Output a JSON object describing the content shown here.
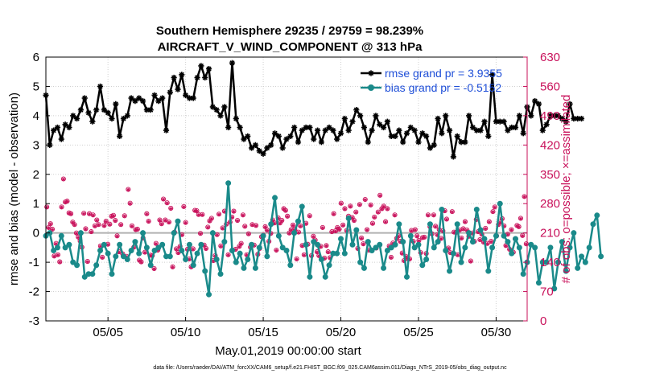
{
  "chart_data": {
    "type": "line",
    "title": "Southern Hemisphere 29235 / 29759 = 98.239%",
    "subtitle": "AIRCRAFT_V_WIND_COMPONENT @ 313 hPa",
    "xlabel": "May.01,2019 00:00:00 start",
    "ylabel": "rmse and bias (model - observation)",
    "y2label": "# of obs: o=possible; ×=assimilated",
    "footnote": "data file: /Users/raeder/DAI/ATM_forcXX/CAM6_setup/f.e21.FHIST_BGC.f09_025.CAM6assim.011/Diags_NTrS_2019-05/obs_diag_output.nc",
    "xlim": [
      1.0,
      32.0
    ],
    "ylim": [
      -3,
      6
    ],
    "y2lim": [
      0,
      630
    ],
    "xticks": [
      5,
      10,
      15,
      20,
      25,
      30
    ],
    "xtick_labels": [
      "05/05",
      "05/10",
      "05/15",
      "05/20",
      "05/25",
      "05/30"
    ],
    "yticks": [
      -3,
      -2,
      -1,
      0,
      1,
      2,
      3,
      4,
      5,
      6
    ],
    "y2ticks": [
      0,
      70,
      140,
      210,
      280,
      350,
      420,
      490,
      560,
      630
    ],
    "grid": "dotted",
    "legend_position": "top-right",
    "x_step_days": 0.25,
    "series": [
      {
        "name": "rmse grand pr = 3.9355",
        "axis": "left",
        "marker": "asterisk",
        "color": "#000000",
        "values": [
          4.7,
          3.0,
          3.5,
          3.6,
          3.2,
          3.7,
          3.6,
          4.0,
          3.9,
          4.2,
          4.6,
          4.1,
          3.8,
          4.2,
          5.0,
          4.2,
          4.1,
          3.9,
          4.4,
          3.3,
          3.9,
          4.0,
          4.6,
          4.5,
          4.6,
          4.5,
          4.2,
          4.2,
          4.7,
          4.5,
          4.6,
          3.5,
          4.8,
          5.3,
          4.9,
          5.4,
          4.7,
          4.6,
          4.6,
          5.3,
          5.7,
          5.3,
          5.6,
          4.3,
          4.2,
          4.0,
          4.3,
          3.6,
          5.8,
          3.9,
          3.6,
          3.2,
          3.3,
          2.9,
          3.0,
          2.8,
          2.7,
          2.9,
          3.0,
          3.4,
          3.3,
          2.9,
          3.2,
          3.3,
          3.6,
          3.1,
          3.5,
          3.6,
          3.6,
          3.2,
          3.5,
          3.1,
          3.5,
          3.6,
          3.5,
          3.2,
          3.4,
          3.9,
          3.5,
          3.8,
          4.2,
          4.0,
          3.6,
          3.1,
          3.5,
          4.0,
          3.7,
          3.6,
          3.8,
          3.3,
          3.3,
          3.5,
          3.1,
          3.4,
          3.6,
          3.5,
          3.1,
          3.4,
          3.3,
          2.9,
          3.0,
          3.9,
          3.4,
          4.0,
          3.5,
          2.6,
          3.3,
          3.1,
          3.1,
          4.0,
          3.6,
          3.5,
          3.5,
          3.8,
          3.3,
          5.4,
          3.8,
          3.8,
          3.8,
          3.5,
          3.6,
          3.6,
          4.0,
          3.4,
          4.3,
          4.0,
          4.5,
          4.4,
          3.5,
          3.7,
          4.0,
          4.0,
          4.0,
          3.9,
          3.8,
          4.4,
          3.9,
          3.9,
          3.9
        ]
      },
      {
        "name": "bias grand pr = -0.5152",
        "axis": "left",
        "marker": "circle",
        "color": "#1a8a8a",
        "values": [
          -0.1,
          0.0,
          -0.6,
          -0.5,
          -0.1,
          -0.5,
          -0.4,
          -1.0,
          -1.1,
          0.0,
          -1.5,
          -1.4,
          -1.4,
          -1.1,
          -0.6,
          -0.4,
          -0.7,
          -1.4,
          -0.8,
          -0.4,
          -0.8,
          -0.9,
          -0.6,
          -0.3,
          -0.7,
          0.0,
          -0.5,
          -1.1,
          -0.6,
          -0.5,
          -0.4,
          -0.8,
          -0.8,
          0.0,
          0.4,
          -0.6,
          -0.9,
          -0.4,
          -1.1,
          -0.7,
          -0.4,
          -1.3,
          -2.1,
          0.0,
          -0.9,
          -1.4,
          -0.3,
          1.7,
          -0.6,
          -1.0,
          -0.7,
          -1.2,
          -0.9,
          -0.4,
          -1.2,
          -0.5,
          -0.1,
          -0.8,
          0.3,
          1.2,
          -0.1,
          -0.5,
          -0.6,
          -1.1,
          0.0,
          0.4,
          0.9,
          -0.4,
          -1.5,
          -0.3,
          -0.4,
          -0.9,
          -1.5,
          -1.1,
          -0.7,
          -0.7,
          -0.2,
          -0.7,
          0.5,
          -0.4,
          0.1,
          -1.0,
          -1.2,
          -0.3,
          -0.6,
          -0.5,
          -0.4,
          -1.2,
          -0.6,
          -0.5,
          -0.4,
          0.3,
          -0.3,
          -1.5,
          -0.1,
          -0.5,
          -0.4,
          -1.1,
          -0.9,
          0.3,
          -0.5,
          -0.3,
          0.8,
          -0.6,
          -1.3,
          -0.7,
          0.3,
          -1.0,
          -0.5,
          0.0,
          -0.3,
          0.8,
          0.1,
          -0.2,
          -1.3,
          -0.5,
          -0.1,
          1.0,
          -0.1,
          -0.3,
          -0.7,
          -0.2,
          -0.5,
          -1.4,
          -1.0,
          -0.4,
          -0.5,
          -1.7,
          -1.0,
          -1.0,
          -0.5,
          -1.9,
          -1.0,
          -0.3,
          -1.3,
          -0.5,
          0.0,
          -1.2,
          -0.8,
          -1.0,
          -0.5,
          0.3,
          0.6,
          -0.8
        ]
      },
      {
        "name": "obs possible",
        "axis": "right",
        "marker": "open-circle",
        "color": "#c8105a",
        "values": [
          272,
          223,
          232,
          219,
          155,
          185,
          158,
          141,
          272,
          339,
          284,
          286,
          258,
          256,
          236,
          230,
          210,
          200,
          191,
          176,
          257,
          220,
          142,
          256,
          213,
          253,
          227,
          241,
          230,
          179,
          152,
          228,
          238,
          183,
          231,
          250,
          252,
          240,
          203,
          165,
          230,
          160,
          251,
          154,
          314,
          281,
          227,
          176,
          218,
          219,
          145,
          141,
          198,
          164,
          256,
          238,
          157,
          156,
          125,
          185,
          169,
          241,
          232,
          291,
          241,
          282,
          236,
          269,
          129,
          212,
          172,
          163,
          178,
          206,
          273,
          235,
          171,
          148,
          129,
          172,
          264,
          263,
          254,
          209,
          254,
          181,
          173,
          224,
          239,
          245,
          144,
          156,
          206,
          255,
          179,
          222,
          262,
          231,
          158,
          236,
          248,
          262,
          171,
          240,
          178,
          185,
          253,
          226,
          158,
          208,
          176,
          230,
          181,
          228,
          159,
          173,
          201,
          205,
          225,
          217,
          190,
          209,
          241,
          234,
          169,
          246,
          234,
          240,
          268,
          264,
          250,
          210,
          218,
          229,
          219,
          148,
          212,
          227,
          180,
          158,
          233,
          183,
          251,
          156,
          202,
          193,
          165,
          156,
          178,
          223,
          150,
          180,
          165,
          151,
          213,
          256,
          215,
          223,
          219,
          281,
          229,
          268,
          216,
          250,
          274,
          247,
          240,
          260,
          173,
          278,
          198,
          184,
          290,
          218,
          169,
          277,
          233,
          248,
          174,
          260,
          300,
          268,
          274,
          237,
          268,
          179,
          152,
          186,
          253,
          197,
          203,
          190,
          162,
          144,
          154,
          149,
          148,
          216,
          190,
          218,
          203,
          192,
          163,
          199,
          200,
          161,
          253,
          225,
          208,
          253,
          226,
          206,
          218,
          197,
          215,
          263,
          243,
          174,
          163,
          261,
          212,
          211,
          158,
          217,
          198,
          220,
          237,
          217,
          202,
          143,
          210,
          190,
          242,
          213,
          194,
          207,
          188,
          221,
          185,
          237,
          190,
          261,
          272,
          203,
          230,
          236,
          244,
          227,
          180,
          207,
          171,
          218,
          164,
          196,
          228,
          225,
          245,
          204,
          297,
          184
        ]
      },
      {
        "name": "obs assimilated",
        "axis": "right",
        "marker": "asterisk",
        "color": "#c8105a",
        "values": [
          271,
          222,
          231,
          218,
          154,
          184,
          157,
          140,
          271,
          338,
          283,
          285,
          257,
          255,
          235,
          229,
          209,
          199,
          190,
          175,
          256,
          219,
          141,
          255,
          212,
          252,
          226,
          240,
          229,
          178,
          151,
          227,
          237,
          182,
          230,
          249,
          251,
          239,
          202,
          164,
          229,
          159,
          250,
          153,
          313,
          280,
          226,
          175,
          217,
          218,
          144,
          140,
          197,
          163,
          255,
          237,
          156,
          155,
          124,
          184,
          168,
          240,
          231,
          290,
          240,
          281,
          235,
          268,
          128,
          211,
          171,
          162,
          177,
          205,
          272,
          234,
          170,
          147,
          128,
          171,
          263,
          262,
          253,
          208,
          253,
          180,
          172,
          223,
          238,
          244,
          143,
          155,
          205,
          254,
          178,
          221,
          261,
          230,
          157,
          235,
          247,
          261,
          170,
          239,
          177,
          184,
          252,
          225,
          157,
          207,
          175,
          229,
          180,
          227,
          158,
          172,
          200,
          204,
          224,
          216,
          189,
          208,
          240,
          233,
          168,
          245,
          233,
          239,
          267,
          263,
          249,
          209,
          217,
          228,
          218,
          147,
          211,
          226,
          179,
          157,
          232,
          182,
          250,
          155,
          201,
          192,
          164,
          155,
          177,
          222,
          149,
          179,
          164,
          150,
          212,
          255,
          214,
          222,
          218,
          280,
          228,
          267,
          215,
          249,
          273,
          246,
          239,
          259,
          172,
          277,
          197,
          183,
          289,
          217,
          168,
          276,
          232,
          247,
          173,
          259,
          299,
          267,
          273,
          236,
          267,
          178,
          151,
          185,
          252,
          196,
          202,
          189,
          161,
          143,
          153,
          148,
          147,
          215,
          189,
          217,
          202,
          191,
          162,
          198,
          199,
          160,
          252,
          224,
          207,
          252,
          225,
          205,
          217,
          196,
          214,
          262,
          242,
          173,
          162,
          260,
          211,
          210,
          157,
          216,
          197,
          219,
          236,
          216,
          201,
          142,
          209,
          189,
          241,
          212,
          193,
          206,
          187,
          220,
          184,
          236,
          189,
          260,
          271,
          202,
          229,
          235,
          243,
          226,
          179,
          206,
          170,
          217,
          163,
          195,
          227,
          224,
          244,
          203,
          296,
          183
        ]
      }
    ]
  }
}
